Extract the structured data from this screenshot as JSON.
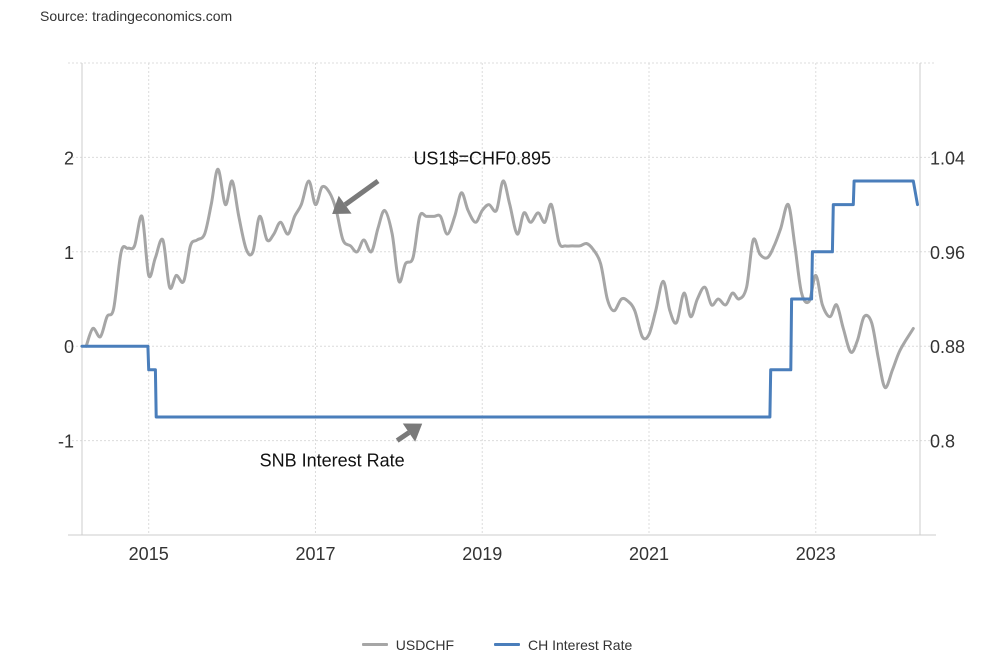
{
  "source": "Source: tradingeconomics.com",
  "chart_data": {
    "type": "line",
    "x_range": [
      2014.2,
      2024.25
    ],
    "x_ticks": [
      "2015",
      "2017",
      "2019",
      "2021",
      "2023"
    ],
    "x_tick_values": [
      2015,
      2017,
      2019,
      2021,
      2023
    ],
    "left_axis": {
      "ticks": [
        "2",
        "1",
        "0",
        "-1"
      ],
      "tick_values": [
        2,
        1,
        0,
        -1
      ],
      "range": [
        -2,
        3
      ]
    },
    "right_axis": {
      "ticks": [
        "1.04",
        "0.96",
        "0.88",
        "0.8"
      ],
      "tick_values": [
        1.04,
        0.96,
        0.88,
        0.8
      ],
      "range": [
        0.72,
        1.12
      ]
    },
    "grid": true,
    "legend_position": "bottom",
    "series": [
      {
        "name": "USDCHF",
        "axis": "right",
        "color": "#a6a6a6",
        "points": [
          [
            2014.25,
            0.88
          ],
          [
            2014.33,
            0.895
          ],
          [
            2014.42,
            0.888
          ],
          [
            2014.5,
            0.905
          ],
          [
            2014.58,
            0.912
          ],
          [
            2014.67,
            0.96
          ],
          [
            2014.75,
            0.963
          ],
          [
            2014.83,
            0.965
          ],
          [
            2014.92,
            0.99
          ],
          [
            2015.0,
            0.94
          ],
          [
            2015.08,
            0.955
          ],
          [
            2015.17,
            0.97
          ],
          [
            2015.25,
            0.93
          ],
          [
            2015.33,
            0.94
          ],
          [
            2015.42,
            0.935
          ],
          [
            2015.5,
            0.965
          ],
          [
            2015.58,
            0.97
          ],
          [
            2015.67,
            0.975
          ],
          [
            2015.75,
            1.0
          ],
          [
            2015.83,
            1.03
          ],
          [
            2015.92,
            1.0
          ],
          [
            2016.0,
            1.02
          ],
          [
            2016.08,
            0.99
          ],
          [
            2016.17,
            0.962
          ],
          [
            2016.25,
            0.96
          ],
          [
            2016.33,
            0.99
          ],
          [
            2016.42,
            0.97
          ],
          [
            2016.5,
            0.975
          ],
          [
            2016.58,
            0.985
          ],
          [
            2016.67,
            0.975
          ],
          [
            2016.75,
            0.99
          ],
          [
            2016.83,
            1.0
          ],
          [
            2016.92,
            1.02
          ],
          [
            2017.0,
            1.0
          ],
          [
            2017.08,
            1.015
          ],
          [
            2017.17,
            1.01
          ],
          [
            2017.25,
            0.995
          ],
          [
            2017.33,
            0.97
          ],
          [
            2017.42,
            0.965
          ],
          [
            2017.5,
            0.96
          ],
          [
            2017.58,
            0.97
          ],
          [
            2017.67,
            0.96
          ],
          [
            2017.75,
            0.98
          ],
          [
            2017.83,
            0.995
          ],
          [
            2017.92,
            0.975
          ],
          [
            2018.0,
            0.935
          ],
          [
            2018.08,
            0.95
          ],
          [
            2018.17,
            0.955
          ],
          [
            2018.25,
            0.99
          ],
          [
            2018.33,
            0.99
          ],
          [
            2018.42,
            0.99
          ],
          [
            2018.5,
            0.99
          ],
          [
            2018.58,
            0.975
          ],
          [
            2018.67,
            0.99
          ],
          [
            2018.75,
            1.01
          ],
          [
            2018.83,
            0.995
          ],
          [
            2018.92,
            0.985
          ],
          [
            2019.0,
            0.995
          ],
          [
            2019.08,
            1.0
          ],
          [
            2019.17,
            0.995
          ],
          [
            2019.25,
            1.02
          ],
          [
            2019.33,
            1.0
          ],
          [
            2019.42,
            0.975
          ],
          [
            2019.5,
            0.993
          ],
          [
            2019.58,
            0.985
          ],
          [
            2019.67,
            0.993
          ],
          [
            2019.75,
            0.985
          ],
          [
            2019.83,
            1.0
          ],
          [
            2019.92,
            0.968
          ],
          [
            2020.0,
            0.965
          ],
          [
            2020.08,
            0.965
          ],
          [
            2020.17,
            0.965
          ],
          [
            2020.25,
            0.967
          ],
          [
            2020.33,
            0.962
          ],
          [
            2020.42,
            0.95
          ],
          [
            2020.5,
            0.92
          ],
          [
            2020.58,
            0.91
          ],
          [
            2020.67,
            0.92
          ],
          [
            2020.75,
            0.918
          ],
          [
            2020.83,
            0.91
          ],
          [
            2020.92,
            0.888
          ],
          [
            2021.0,
            0.89
          ],
          [
            2021.08,
            0.91
          ],
          [
            2021.17,
            0.935
          ],
          [
            2021.25,
            0.91
          ],
          [
            2021.33,
            0.9
          ],
          [
            2021.42,
            0.925
          ],
          [
            2021.5,
            0.905
          ],
          [
            2021.58,
            0.92
          ],
          [
            2021.67,
            0.93
          ],
          [
            2021.75,
            0.915
          ],
          [
            2021.83,
            0.92
          ],
          [
            2021.92,
            0.915
          ],
          [
            2022.0,
            0.925
          ],
          [
            2022.08,
            0.92
          ],
          [
            2022.17,
            0.93
          ],
          [
            2022.25,
            0.97
          ],
          [
            2022.33,
            0.958
          ],
          [
            2022.42,
            0.955
          ],
          [
            2022.5,
            0.965
          ],
          [
            2022.58,
            0.98
          ],
          [
            2022.67,
            1.0
          ],
          [
            2022.75,
            0.965
          ],
          [
            2022.83,
            0.925
          ],
          [
            2022.92,
            0.918
          ],
          [
            2023.0,
            0.94
          ],
          [
            2023.08,
            0.915
          ],
          [
            2023.17,
            0.905
          ],
          [
            2023.25,
            0.915
          ],
          [
            2023.33,
            0.895
          ],
          [
            2023.42,
            0.875
          ],
          [
            2023.5,
            0.885
          ],
          [
            2023.58,
            0.905
          ],
          [
            2023.67,
            0.9
          ],
          [
            2023.75,
            0.87
          ],
          [
            2023.83,
            0.845
          ],
          [
            2023.92,
            0.86
          ],
          [
            2024.0,
            0.875
          ],
          [
            2024.08,
            0.885
          ],
          [
            2024.17,
            0.895
          ]
        ]
      },
      {
        "name": "CH Interest Rate",
        "axis": "left",
        "color": "#4a7ebb",
        "points": [
          [
            2014.2,
            0
          ],
          [
            2014.99,
            0
          ],
          [
            2015.0,
            -0.25
          ],
          [
            2015.08,
            -0.25
          ],
          [
            2015.09,
            -0.75
          ],
          [
            2022.45,
            -0.75
          ],
          [
            2022.46,
            -0.25
          ],
          [
            2022.7,
            -0.25
          ],
          [
            2022.71,
            0.5
          ],
          [
            2022.95,
            0.5
          ],
          [
            2022.96,
            1.0
          ],
          [
            2023.2,
            1.0
          ],
          [
            2023.21,
            1.5
          ],
          [
            2023.45,
            1.5
          ],
          [
            2023.46,
            1.75
          ],
          [
            2024.17,
            1.75
          ],
          [
            2024.22,
            1.5
          ]
        ]
      }
    ],
    "annotations": [
      {
        "text": "US1$=CHF0.895",
        "label_at": [
          2019.0,
          2.0
        ],
        "arrow_from": [
          2017.75,
          1.75
        ],
        "arrow_to": [
          2017.2,
          1.4
        ]
      },
      {
        "text": "SNB Interest Rate",
        "label_at": [
          2017.2,
          -1.2
        ],
        "arrow_from": [
          2017.98,
          -1.0
        ],
        "arrow_to": [
          2018.28,
          -0.82
        ]
      }
    ]
  },
  "legend": [
    {
      "label": "USDCHF",
      "color": "#a6a6a6"
    },
    {
      "label": "CH Interest Rate",
      "color": "#4a7ebb"
    }
  ]
}
